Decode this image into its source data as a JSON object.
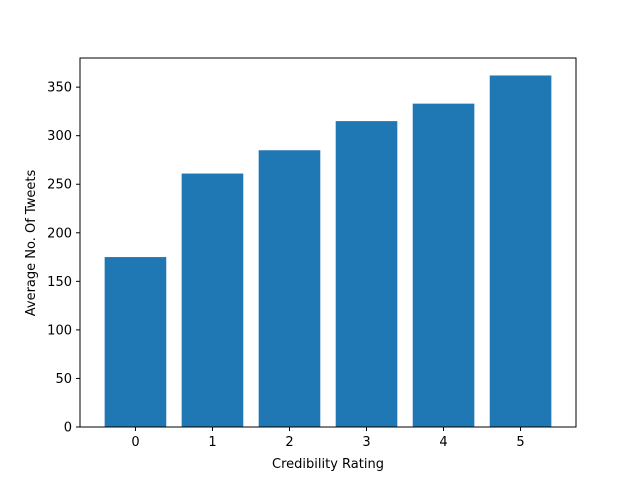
{
  "chart_data": {
    "type": "bar",
    "categories": [
      "0",
      "1",
      "2",
      "3",
      "4",
      "5"
    ],
    "values": [
      175,
      261,
      285,
      315,
      333,
      362
    ],
    "xlabel": "Credibility Rating",
    "ylabel": "Average No. Of Tweets",
    "ylim": [
      0,
      380
    ],
    "yticks": [
      0,
      50,
      100,
      150,
      200,
      250,
      300,
      350
    ],
    "bar_color": "#1f77b4",
    "grid": false
  }
}
